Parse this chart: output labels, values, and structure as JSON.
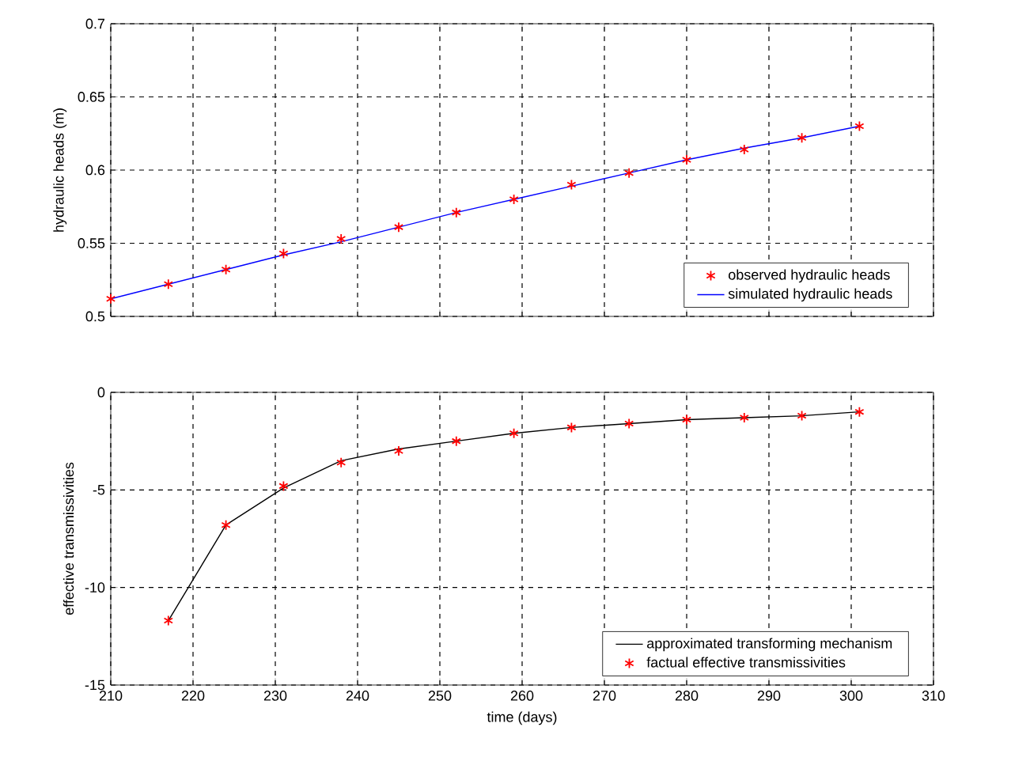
{
  "chart_data": [
    {
      "type": "line",
      "ylabel": "hydraulic heads (m)",
      "x": [
        210,
        217,
        224,
        231,
        238,
        245,
        252,
        259,
        266,
        273,
        280,
        287,
        294,
        301
      ],
      "series": [
        {
          "name": "observed hydraulic heads",
          "type": "scatter",
          "color": "#ff0000",
          "marker": "cross",
          "values": [
            0.512,
            0.522,
            0.532,
            0.543,
            0.553,
            0.561,
            0.571,
            0.58,
            0.59,
            0.598,
            0.607,
            0.614,
            0.622,
            0.63
          ]
        },
        {
          "name": "simulated hydraulic heads",
          "color": "#0000ff",
          "values": [
            0.512,
            0.522,
            0.532,
            0.542,
            0.551,
            0.561,
            0.571,
            0.58,
            0.589,
            0.598,
            0.607,
            0.615,
            0.622,
            0.63
          ]
        }
      ],
      "xlim": [
        210,
        310
      ],
      "xticks": [
        210,
        220,
        230,
        240,
        250,
        260,
        270,
        280,
        290,
        300,
        310
      ],
      "ylim": [
        0.5,
        0.7
      ],
      "yticks": [
        0.5,
        0.55,
        0.6,
        0.65,
        0.7
      ],
      "grid": true,
      "legend": "bottom right",
      "tick_labels": "y"
    },
    {
      "type": "line",
      "xlabel": "time (days)",
      "ylabel": "effective transmissivities",
      "x": [
        217,
        224,
        231,
        238,
        245,
        252,
        259,
        266,
        273,
        280,
        287,
        294,
        301
      ],
      "series": [
        {
          "name": "approximated transforming mechanism",
          "color": "#000000",
          "values": [
            -11.7,
            -6.8,
            -4.9,
            -3.5,
            -2.9,
            -2.5,
            -2.1,
            -1.8,
            -1.6,
            -1.4,
            -1.3,
            -1.2,
            -1.0
          ]
        },
        {
          "name": "factual effective transmissivities",
          "type": "scatter",
          "color": "#ff0000",
          "marker": "cross",
          "values": [
            -11.7,
            -6.8,
            -4.8,
            -3.6,
            -3.0,
            -2.5,
            -2.1,
            -1.8,
            -1.6,
            -1.4,
            -1.3,
            -1.2,
            -1.0
          ]
        }
      ],
      "xlim": [
        210,
        310
      ],
      "xticks": [
        210,
        220,
        230,
        240,
        250,
        260,
        270,
        280,
        290,
        300,
        310
      ],
      "ylim": [
        -15,
        0
      ],
      "yticks": [
        -15,
        -10,
        -5,
        0
      ],
      "grid": true,
      "legend": "bottom right"
    }
  ]
}
